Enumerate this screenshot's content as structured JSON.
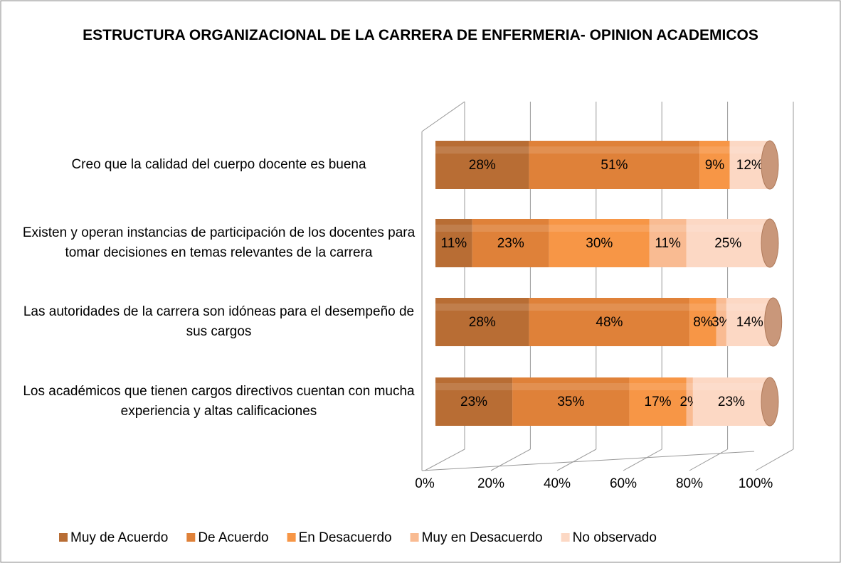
{
  "chart_data": {
    "type": "bar",
    "orientation": "horizontal",
    "stacked": true,
    "title": "ESTRUCTURA ORGANIZACIONAL DE LA CARRERA DE ENFERMERIA- OPINION ACADEMICOS",
    "categories": [
      "Creo que la calidad del cuerpo docente es buena",
      "Existen y operan instancias de participación de los docentes para tomar decisiones en temas relevantes de la carrera",
      "Las autoridades de la carrera son idóneas para el desempeño de sus cargos",
      "Los académicos que tienen cargos directivos cuentan con mucha experiencia y altas calificaciones"
    ],
    "series": [
      {
        "name": "Muy de Acuerdo",
        "color": "#b86d34",
        "values": [
          28,
          11,
          28,
          23
        ],
        "value_labels": [
          "28%",
          "11%",
          "28%",
          "23%"
        ]
      },
      {
        "name": "De Acuerdo",
        "color": "#df8139",
        "values": [
          51,
          23,
          48,
          35
        ],
        "value_labels": [
          "51%",
          "23%",
          "48%",
          "35%"
        ]
      },
      {
        "name": "En Desacuerdo",
        "color": "#f79646",
        "values": [
          9,
          30,
          8,
          17
        ],
        "value_labels": [
          "9%",
          "30%",
          "8%",
          "17%"
        ]
      },
      {
        "name": "Muy en Desacuerdo",
        "color": "#f9bb92",
        "values": [
          0,
          11,
          3,
          2
        ],
        "value_labels": [
          null,
          "11%",
          "3%",
          "2%"
        ]
      },
      {
        "name": "No observado",
        "color": "#fcd8c4",
        "values": [
          12,
          25,
          14,
          23
        ],
        "value_labels": [
          "12%",
          "25%",
          "14%",
          "23%"
        ]
      }
    ],
    "xlim": [
      0,
      100
    ],
    "xticks": [
      {
        "value": 0,
        "label": "0%"
      },
      {
        "value": 20,
        "label": "20%"
      },
      {
        "value": 40,
        "label": "40%"
      },
      {
        "value": 60,
        "label": "60%"
      },
      {
        "value": 80,
        "label": "80%"
      },
      {
        "value": 100,
        "label": "100%"
      }
    ],
    "grid": true,
    "legend": "bottom"
  }
}
